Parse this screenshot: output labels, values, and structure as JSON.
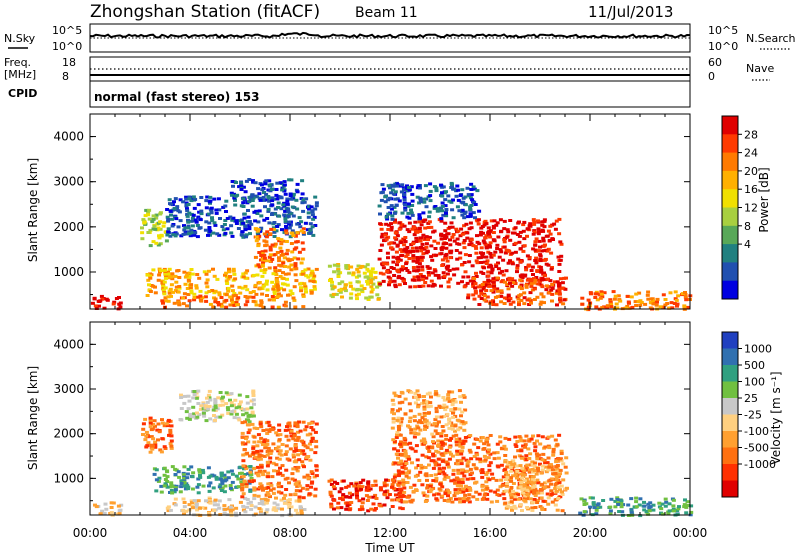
{
  "header": {
    "station": "Zhongshan Station (fitACF)",
    "beam": "Beam 11",
    "date": "11/Jul/2013"
  },
  "strips": {
    "nsky_label": "N.Sky",
    "nsky_ticks": [
      "10^5",
      "10^0"
    ],
    "nsearch_label": "N.Search",
    "nsearch_ticks": [
      "10^5",
      "10^0"
    ],
    "freq_label_1": "Freq.",
    "freq_label_2": "[MHz]",
    "freq_ticks": [
      "18",
      "8"
    ],
    "nave_label": "Nave",
    "nave_ticks": [
      "60",
      "0"
    ],
    "cpid_label": "CPID",
    "cpid_text": "normal (fast stereo) 153"
  },
  "chart_data": [
    {
      "type": "heatmap",
      "panel": "power",
      "ylabel": "Slant Range [km]",
      "ylim": [
        180,
        4500
      ],
      "yticks": [
        "4000",
        "3000",
        "2000",
        "1000"
      ],
      "xlim": [
        "00:00",
        "24:00"
      ],
      "colorbar": {
        "label": "Power [dB]",
        "ticks": [
          "28",
          "24",
          "20",
          "16",
          "12",
          "8",
          "4"
        ],
        "colors": [
          "#e00000",
          "#ff3a00",
          "#ff7a00",
          "#ffb000",
          "#f0e000",
          "#a8d040",
          "#58a858",
          "#208080",
          "#2050b0",
          "#0000e0"
        ]
      },
      "blobs": [
        {
          "t0": 0.0,
          "t1": 1.2,
          "r0": 200,
          "r1": 500,
          "c": 0
        },
        {
          "t0": 2.0,
          "t1": 3.0,
          "r0": 1600,
          "r1": 2400,
          "c": 5
        },
        {
          "t0": 2.2,
          "t1": 9.0,
          "r0": 500,
          "r1": 1100,
          "c": 3
        },
        {
          "t0": 2.8,
          "t1": 8.5,
          "r0": 250,
          "r1": 500,
          "c": 2
        },
        {
          "t0": 3.0,
          "t1": 9.0,
          "r0": 1800,
          "r1": 2700,
          "c": 8
        },
        {
          "t0": 5.5,
          "t1": 8.5,
          "r0": 2600,
          "r1": 3100,
          "c": 8
        },
        {
          "t0": 6.5,
          "t1": 8.5,
          "r0": 1100,
          "r1": 2000,
          "c": 2
        },
        {
          "t0": 9.5,
          "t1": 11.5,
          "r0": 400,
          "r1": 1200,
          "c": 4
        },
        {
          "t0": 11.5,
          "t1": 18.8,
          "r0": 700,
          "r1": 2200,
          "c": 0
        },
        {
          "t0": 11.5,
          "t1": 15.5,
          "r0": 2200,
          "r1": 3000,
          "c": 8
        },
        {
          "t0": 15.0,
          "t1": 19.0,
          "r0": 300,
          "r1": 900,
          "c": 1
        },
        {
          "t0": 19.5,
          "t1": 24.0,
          "r0": 200,
          "r1": 600,
          "c": 2
        }
      ]
    },
    {
      "type": "heatmap",
      "panel": "velocity",
      "ylabel": "Slant Range [km]",
      "ylim": [
        180,
        4500
      ],
      "yticks": [
        "4000",
        "3000",
        "2000",
        "1000"
      ],
      "xlabel": "Time UT",
      "xticks": [
        "00:00",
        "04:00",
        "08:00",
        "12:00",
        "16:00",
        "20:00",
        "00:00"
      ],
      "xlim": [
        "00:00",
        "24:00"
      ],
      "colorbar": {
        "label": "Velocity [m s⁻¹]",
        "ticks": [
          "1000",
          "500",
          "100",
          "25",
          "-25",
          "-100",
          "-500",
          "-1000"
        ],
        "colors": [
          "#2040c0",
          "#3070b0",
          "#30a080",
          "#70c040",
          "#c8c8c8",
          "#ffd080",
          "#ffa030",
          "#ff7010",
          "#ff3000",
          "#e00000"
        ]
      },
      "blobs": [
        {
          "t0": 0.0,
          "t1": 1.2,
          "r0": 200,
          "r1": 500,
          "c": 5
        },
        {
          "t0": 2.0,
          "t1": 3.2,
          "r0": 1600,
          "r1": 2400,
          "c": 7
        },
        {
          "t0": 2.5,
          "t1": 6.5,
          "r0": 700,
          "r1": 1300,
          "c": 2
        },
        {
          "t0": 3.0,
          "t1": 8.5,
          "r0": 200,
          "r1": 600,
          "c": 5
        },
        {
          "t0": 3.5,
          "t1": 6.5,
          "r0": 2300,
          "r1": 3000,
          "c": 4
        },
        {
          "t0": 6.0,
          "t1": 9.0,
          "r0": 600,
          "r1": 2300,
          "c": 7
        },
        {
          "t0": 9.5,
          "t1": 12.5,
          "r0": 300,
          "r1": 1000,
          "c": 8
        },
        {
          "t0": 12.0,
          "t1": 18.8,
          "r0": 500,
          "r1": 2000,
          "c": 7
        },
        {
          "t0": 12.0,
          "t1": 15.0,
          "r0": 2000,
          "r1": 3000,
          "c": 6
        },
        {
          "t0": 16.5,
          "t1": 19.0,
          "r0": 300,
          "r1": 1500,
          "c": 6
        },
        {
          "t0": 19.5,
          "t1": 24.0,
          "r0": 200,
          "r1": 600,
          "c": 2
        }
      ]
    }
  ]
}
